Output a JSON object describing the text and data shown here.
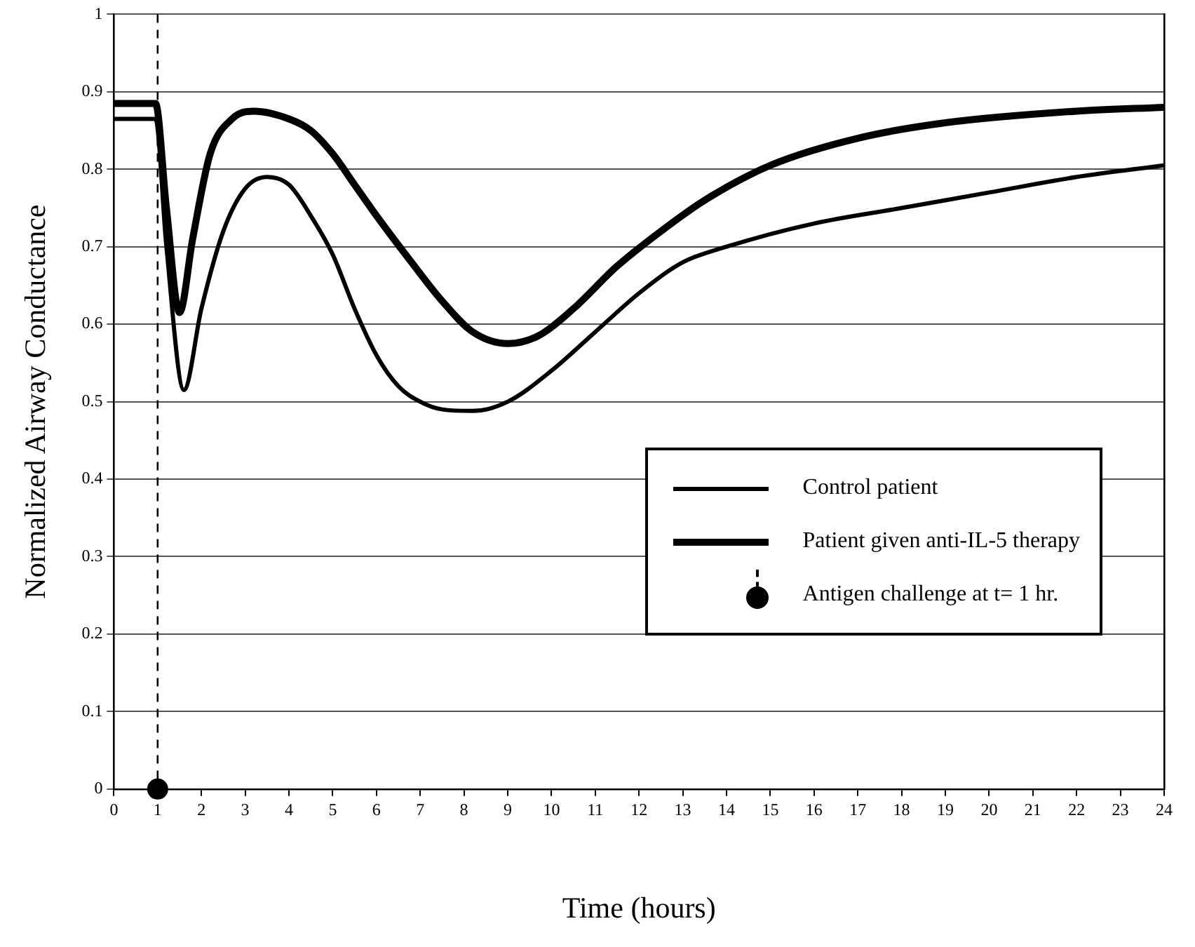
{
  "chart_data": {
    "type": "line",
    "xlabel": "Time (hours)",
    "ylabel": "Normalized Airway Conductance",
    "xlim": [
      0,
      24
    ],
    "xticks": [
      0,
      1,
      2,
      3,
      4,
      5,
      6,
      7,
      8,
      9,
      10,
      11,
      12,
      13,
      14,
      15,
      16,
      17,
      18,
      19,
      20,
      21,
      22,
      23,
      24
    ],
    "ylim": [
      0,
      1
    ],
    "yticks": [
      0,
      0.1,
      0.2,
      0.3,
      0.4,
      0.5,
      0.6,
      0.7,
      0.8,
      0.9,
      1
    ],
    "grid": "y",
    "legend": "right",
    "marker": "none",
    "series": [
      {
        "name": "Control patient",
        "color": "#000000",
        "x": [
          0,
          0.95,
          1.2,
          1.6,
          2.0,
          2.5,
          3.0,
          3.5,
          4.0,
          4.5,
          5.0,
          5.5,
          6.0,
          6.5,
          7.0,
          7.5,
          8.2,
          9.0,
          10.0,
          11.0,
          12.0,
          13.0,
          14.0,
          16.0,
          18.0,
          20.0,
          22.0,
          24.0
        ],
        "values": [
          0.865,
          0.865,
          0.7,
          0.515,
          0.62,
          0.72,
          0.775,
          0.79,
          0.78,
          0.74,
          0.69,
          0.62,
          0.56,
          0.52,
          0.5,
          0.49,
          0.488,
          0.5,
          0.54,
          0.59,
          0.64,
          0.68,
          0.7,
          0.73,
          0.75,
          0.77,
          0.79,
          0.805
        ]
      },
      {
        "name": "Patient given anti-IL-5 therapy",
        "color": "#000000",
        "x": [
          0,
          0.95,
          1.2,
          1.5,
          1.8,
          2.2,
          2.7,
          3.2,
          4.0,
          4.5,
          5.0,
          5.5,
          6.0,
          6.8,
          7.5,
          8.2,
          9.0,
          9.7,
          10.5,
          11.5,
          12.5,
          13.5,
          15.0,
          17.0,
          19.0,
          22.0,
          24.0
        ],
        "values": [
          0.885,
          0.885,
          0.75,
          0.615,
          0.71,
          0.82,
          0.865,
          0.875,
          0.865,
          0.85,
          0.82,
          0.78,
          0.74,
          0.68,
          0.63,
          0.59,
          0.575,
          0.585,
          0.62,
          0.675,
          0.72,
          0.76,
          0.805,
          0.84,
          0.86,
          0.875,
          0.88
        ]
      },
      {
        "name": "Antigen challenge at t= 1 hr.",
        "type": "scatter",
        "marker": "circle",
        "color": "#000000",
        "x": [
          1
        ],
        "values": [
          0
        ]
      }
    ],
    "ref_lines": [
      {
        "axis": "x",
        "value": 1,
        "color": "#000000",
        "line_style": "dashed"
      }
    ]
  }
}
